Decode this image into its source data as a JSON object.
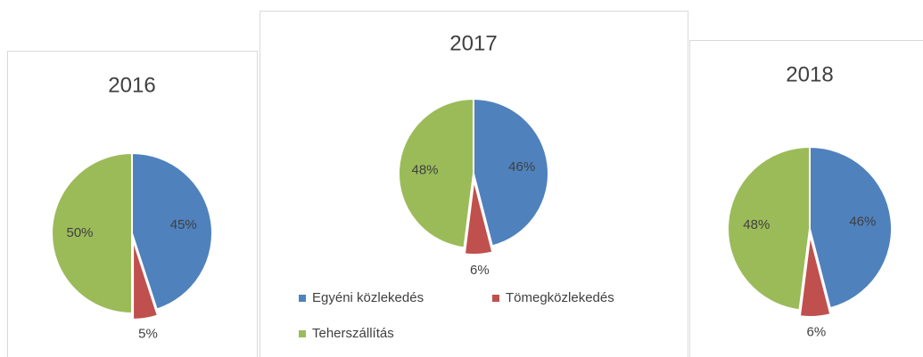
{
  "chart_data": [
    {
      "type": "pie",
      "title": "2016",
      "values": [
        45,
        5,
        50
      ],
      "value_labels": [
        "45%",
        "5%",
        "50%"
      ],
      "colors": [
        "#4f81bd",
        "#c0504d",
        "#9bbb59"
      ]
    },
    {
      "type": "pie",
      "title": "2017",
      "categories": [
        "Egyéni közlekedés",
        "Tömegközlekedés",
        "Teherszállítás"
      ],
      "values": [
        46,
        6,
        48
      ],
      "value_labels": [
        "46%",
        "6%",
        "48%"
      ],
      "colors": [
        "#4f81bd",
        "#c0504d",
        "#9bbb59"
      ],
      "legend": "bottom"
    },
    {
      "type": "pie",
      "title": "2018",
      "values": [
        46,
        6,
        48
      ],
      "value_labels": [
        "46%",
        "6%",
        "48%"
      ],
      "colors": [
        "#4f81bd",
        "#c0504d",
        "#9bbb59"
      ]
    }
  ]
}
